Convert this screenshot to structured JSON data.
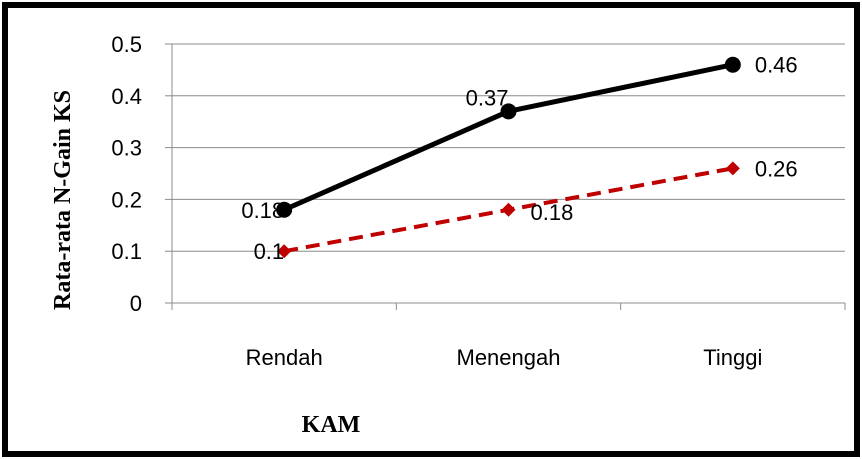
{
  "chart_data": {
    "type": "line",
    "title": "",
    "xlabel": "KAM",
    "ylabel": "Rata-rata N-Gain KS",
    "categories": [
      "Rendah",
      "Menengah",
      "Tinggi"
    ],
    "ylim": [
      0,
      0.5
    ],
    "yticks": [
      "0",
      "0.1",
      "0.2",
      "0.3",
      "0.4",
      "0.5"
    ],
    "grid": true,
    "legend": "none",
    "series": [
      {
        "values": [
          0.18,
          0.37,
          0.46
        ],
        "labels": [
          "0.18",
          "0.37",
          "0.46"
        ],
        "color": "#000000",
        "dash": "solid",
        "marker": "circle"
      },
      {
        "values": [
          0.1,
          0.18,
          0.26
        ],
        "labels": [
          "0.1",
          "0.18",
          "0.26"
        ],
        "color": "#c00000",
        "dash": "dashed",
        "marker": "diamond"
      }
    ]
  }
}
